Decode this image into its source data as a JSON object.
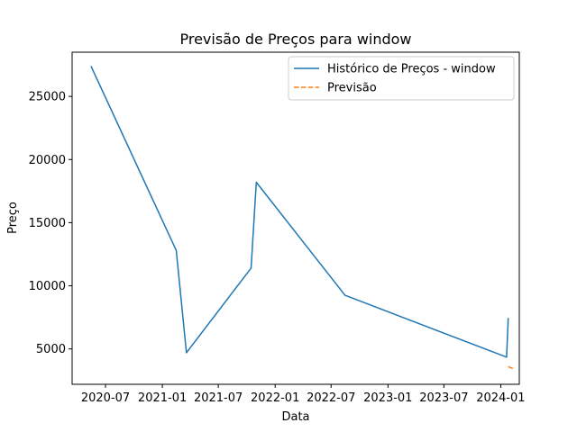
{
  "chart_data": {
    "type": "line",
    "title": "Previsão de Preços para window",
    "xlabel": "Data",
    "ylabel": "Preço",
    "grid": false,
    "legend_position": "top-right",
    "x_ticks": [
      "2020-07",
      "2021-01",
      "2021-07",
      "2022-01",
      "2022-07",
      "2023-01",
      "2023-07",
      "2024-01"
    ],
    "y_ticks": [
      5000,
      10000,
      15000,
      20000,
      25000
    ],
    "xlim": [
      "2020-03-15",
      "2024-03-01"
    ],
    "ylim": [
      2200,
      28500
    ],
    "series": [
      {
        "name": "Histórico de Preços - window",
        "color": "#1f77b4",
        "style": "solid",
        "points": [
          {
            "x": "2020-05-15",
            "y": 27400
          },
          {
            "x": "2021-02-15",
            "y": 12800
          },
          {
            "x": "2021-03-20",
            "y": 4700
          },
          {
            "x": "2021-10-15",
            "y": 11400
          },
          {
            "x": "2021-11-01",
            "y": 18200
          },
          {
            "x": "2022-08-15",
            "y": 9250
          },
          {
            "x": "2024-01-20",
            "y": 4350
          },
          {
            "x": "2024-01-25",
            "y": 7450
          }
        ]
      },
      {
        "name": "Previsão",
        "color": "#ff7f0e",
        "style": "dashed",
        "points": [
          {
            "x": "2024-01-25",
            "y": 3600
          },
          {
            "x": "2024-02-15",
            "y": 3400
          }
        ]
      }
    ]
  }
}
